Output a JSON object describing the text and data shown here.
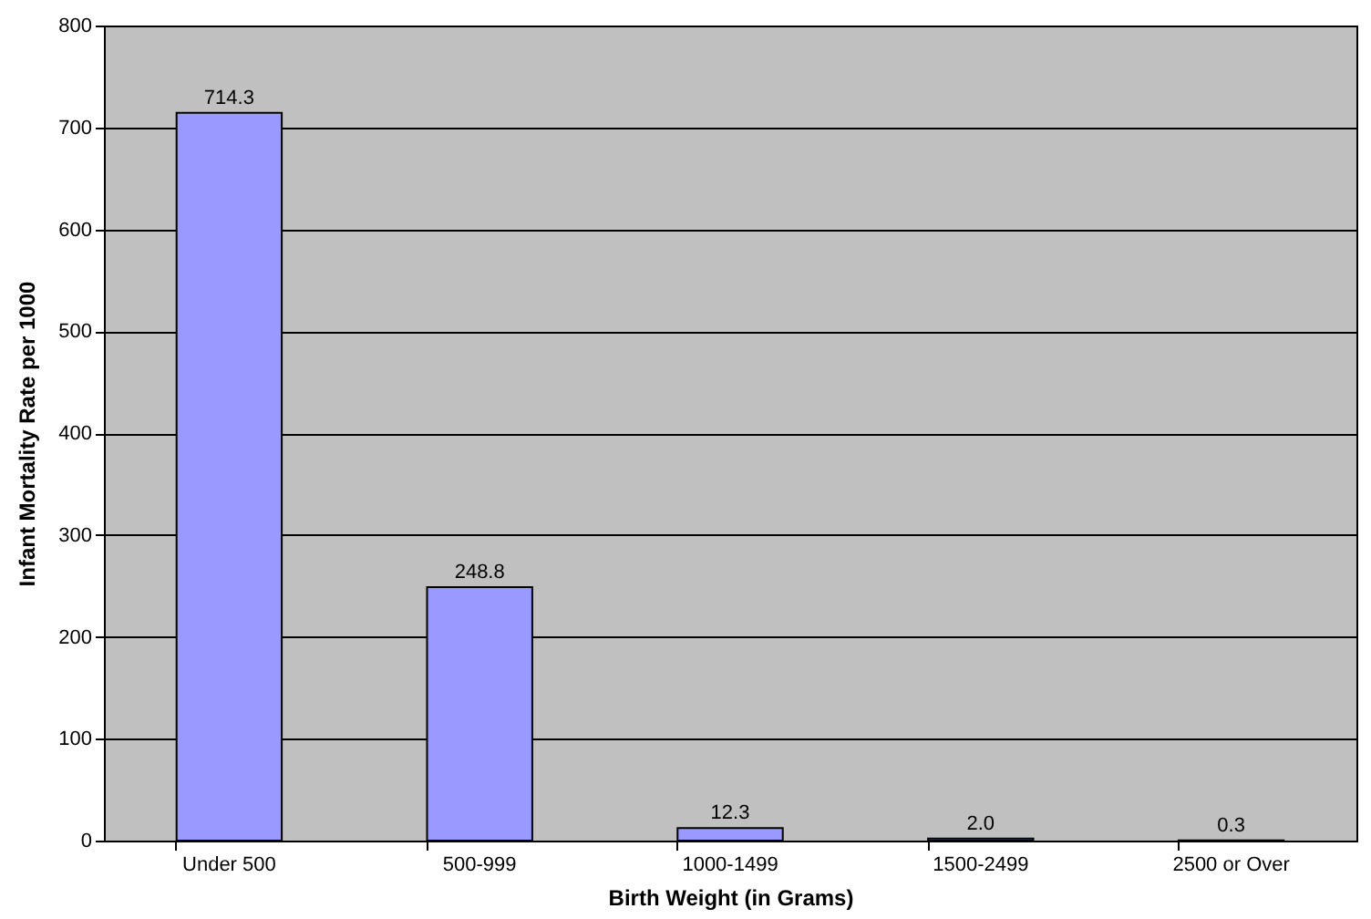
{
  "chart_data": {
    "type": "bar",
    "categories": [
      "Under 500",
      "500-999",
      "1000-1499",
      "1500-2499",
      "2500 or Over"
    ],
    "values": [
      714.3,
      248.8,
      12.3,
      2.0,
      0.3
    ],
    "value_labels": [
      "714.3",
      "248.8",
      "12.3",
      "2.0",
      "0.3"
    ],
    "color": "#9999ff",
    "xlabel": "Birth Weight (in Grams)",
    "ylabel": "Infant Mortality Rate per 1000",
    "ylim": [
      0,
      800
    ],
    "yticks": [
      0,
      100,
      200,
      300,
      400,
      500,
      600,
      700,
      800
    ],
    "grid": "y"
  }
}
